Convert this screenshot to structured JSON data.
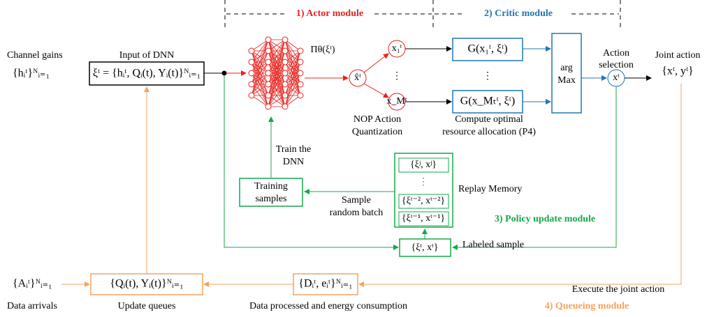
{
  "modules": {
    "actor": "1) Actor module",
    "critic": "2) Critic module",
    "policy": "3) Policy update module",
    "queueing": "4) Queueing module"
  },
  "inputs": {
    "channel_gains": "Channel gains",
    "channel_formula": "{hᵢᵗ}ᴺᵢ₌₁",
    "input_label": "Input of DNN",
    "input_formula": "ξᵗ = {hᵢᵗ, Qᵢ(t), Yᵢ(t)}ᴺᵢ₌₁"
  },
  "actor": {
    "policy": "Πθ(ξᵗ)",
    "relaxed": "x̂ᵗ",
    "x1": "x₁ᵗ",
    "xM": "x_Mᵗ",
    "dots": "⋮",
    "caption_1": "NOP Action",
    "caption_2": "Quantization"
  },
  "critic": {
    "g1": "G(x₁ᵗ, ξᵗ)",
    "gM": "G(x_Mₜᵗ, ξᵗ)",
    "dots": "⋮",
    "caption_1": "Compute optimal",
    "caption_2": "resource allocation (P4)",
    "argmax_1": "arg",
    "argmax_2": "Max"
  },
  "selection": {
    "label_1": "Action",
    "label_2": "selection",
    "chosen": "xᵗ",
    "joint_label": "Joint action",
    "joint_formula": "{xᵗ, yᵗ}"
  },
  "policy": {
    "train_1": "Train the",
    "train_2": "DNN",
    "samples_1": "Training",
    "samples_2": "samples",
    "batch_1": "Sample",
    "batch_2": "random batch",
    "memory_label": "Replay Memory",
    "memory": [
      "{ξʲ, xʲ}",
      "⋮",
      "{ξᵗ⁻², xᵗ⁻²}",
      "{ξᵗ⁻¹, xᵗ⁻¹}"
    ],
    "labeled": "{ξᵗ, xᵗ}",
    "labeled_label": "Labeled sample"
  },
  "queueing": {
    "arrivals": "{Aᵢᵗ}ᴺᵢ₌₁",
    "arrivals_label": "Data arrivals",
    "queues": "{Qᵢ(t), Yᵢ(t)}ᴺᵢ₌₁",
    "queues_label": "Update queues",
    "processed": "{Dᵢᵗ, eᵢᵗ}ᴺᵢ₌₁",
    "processed_label": "Data processed and energy consumption",
    "execute": "Execute the joint action"
  }
}
